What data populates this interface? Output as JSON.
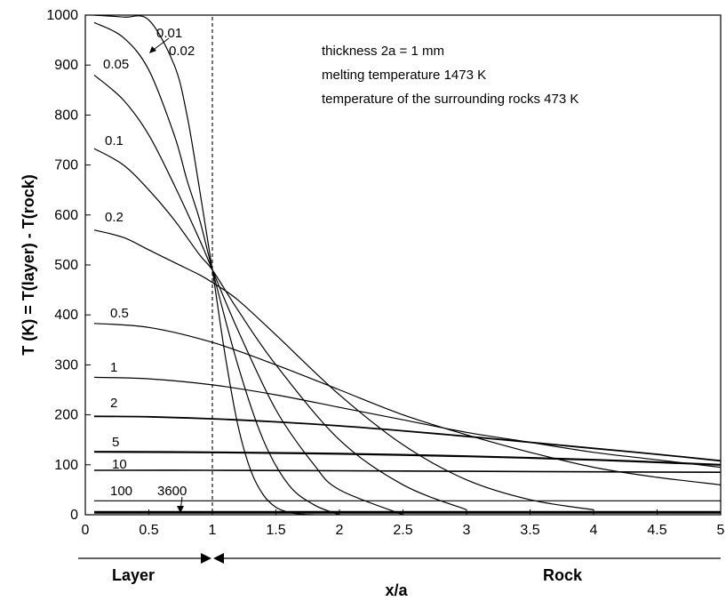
{
  "chart_data": {
    "type": "line",
    "xlabel": "x/a",
    "ylabel": "T (K) =  T(layer) - T(rock)",
    "xlim": [
      0,
      5
    ],
    "ylim": [
      0,
      1000
    ],
    "xticks": [
      "0",
      "0.5",
      "1",
      "1.5",
      "2",
      "2.5",
      "3",
      "3.5",
      "4",
      "4.5",
      "5"
    ],
    "yticks": [
      "0",
      "100",
      "200",
      "300",
      "400",
      "500",
      "600",
      "700",
      "800",
      "900",
      "1000"
    ],
    "grid": false,
    "legend": "none",
    "boundary_x": 1,
    "annotations": [
      "thickness 2a = 1 mm",
      "melting temperature 1473 K",
      "temperature of the surrounding rocks 473 K"
    ],
    "regions": {
      "layer": "Layer",
      "rock": "Rock"
    },
    "series": [
      {
        "label": "0.01",
        "x": [
          0.07,
          0.3,
          0.5,
          0.7,
          0.8,
          0.9,
          1.0,
          1.1,
          1.2,
          1.3,
          1.4,
          1.5,
          1.6,
          1.7,
          1.8
        ],
        "y": [
          1000,
          996,
          990,
          900,
          800,
          650,
          490,
          320,
          180,
          90,
          40,
          15,
          5,
          1,
          0
        ]
      },
      {
        "label": "0.02",
        "x": [
          0.07,
          0.3,
          0.5,
          0.7,
          0.8,
          0.9,
          1.0,
          1.2,
          1.4,
          1.6,
          1.8,
          2.0
        ],
        "y": [
          985,
          955,
          890,
          760,
          670,
          590,
          490,
          300,
          150,
          60,
          20,
          0
        ]
      },
      {
        "label": "0.05",
        "x": [
          0.07,
          0.3,
          0.5,
          0.7,
          0.9,
          1.0,
          1.2,
          1.5,
          1.8,
          2.0,
          2.5
        ],
        "y": [
          880,
          830,
          760,
          660,
          550,
          490,
          370,
          210,
          100,
          50,
          0
        ]
      },
      {
        "label": "0.1",
        "x": [
          0.07,
          0.3,
          0.5,
          0.7,
          0.9,
          1.0,
          1.2,
          1.5,
          2.0,
          2.5,
          3.0
        ],
        "y": [
          733,
          700,
          650,
          590,
          520,
          490,
          410,
          300,
          150,
          60,
          10
        ]
      },
      {
        "label": "0.2",
        "x": [
          0.07,
          0.3,
          0.5,
          0.7,
          0.9,
          1.0,
          1.2,
          1.5,
          2.0,
          2.5,
          3.0,
          3.5,
          4.0
        ],
        "y": [
          570,
          555,
          530,
          505,
          480,
          465,
          430,
          360,
          240,
          140,
          70,
          30,
          10
        ]
      },
      {
        "label": "0.5",
        "x": [
          0.07,
          0.5,
          1.0,
          1.5,
          2.0,
          2.5,
          3.0,
          3.5,
          4.0,
          4.5,
          5.0
        ],
        "y": [
          383,
          375,
          345,
          300,
          250,
          200,
          160,
          125,
          95,
          75,
          60
        ]
      },
      {
        "label": "1",
        "x": [
          0.07,
          0.5,
          1.0,
          1.5,
          2.0,
          2.5,
          3.0,
          3.5,
          4.0,
          4.5,
          5.0
        ],
        "y": [
          275,
          272,
          260,
          240,
          215,
          190,
          165,
          145,
          125,
          110,
          95
        ]
      },
      {
        "label": "2",
        "x": [
          0.07,
          0.5,
          1.0,
          1.5,
          2.0,
          2.5,
          3.0,
          3.5,
          4.0,
          4.5,
          5.0
        ],
        "y": [
          197,
          196,
          192,
          186,
          178,
          168,
          157,
          145,
          133,
          121,
          108
        ]
      },
      {
        "label": "5",
        "x": [
          0.07,
          1.0,
          2.0,
          3.0,
          4.0,
          5.0
        ],
        "y": [
          126,
          125,
          122,
          117,
          110,
          100
        ]
      },
      {
        "label": "10",
        "x": [
          0.07,
          1.0,
          2.0,
          3.0,
          4.0,
          5.0
        ],
        "y": [
          89,
          89,
          88,
          87,
          86,
          85
        ]
      },
      {
        "label": "100",
        "x": [
          0.07,
          1.0,
          2.0,
          3.0,
          4.0,
          5.0
        ],
        "y": [
          28,
          28,
          28,
          28,
          28,
          28
        ]
      },
      {
        "label": "3600",
        "x": [
          0.07,
          1.0,
          2.0,
          3.0,
          4.0,
          5.0
        ],
        "y": [
          5,
          5,
          5,
          5,
          5,
          5
        ]
      }
    ]
  }
}
